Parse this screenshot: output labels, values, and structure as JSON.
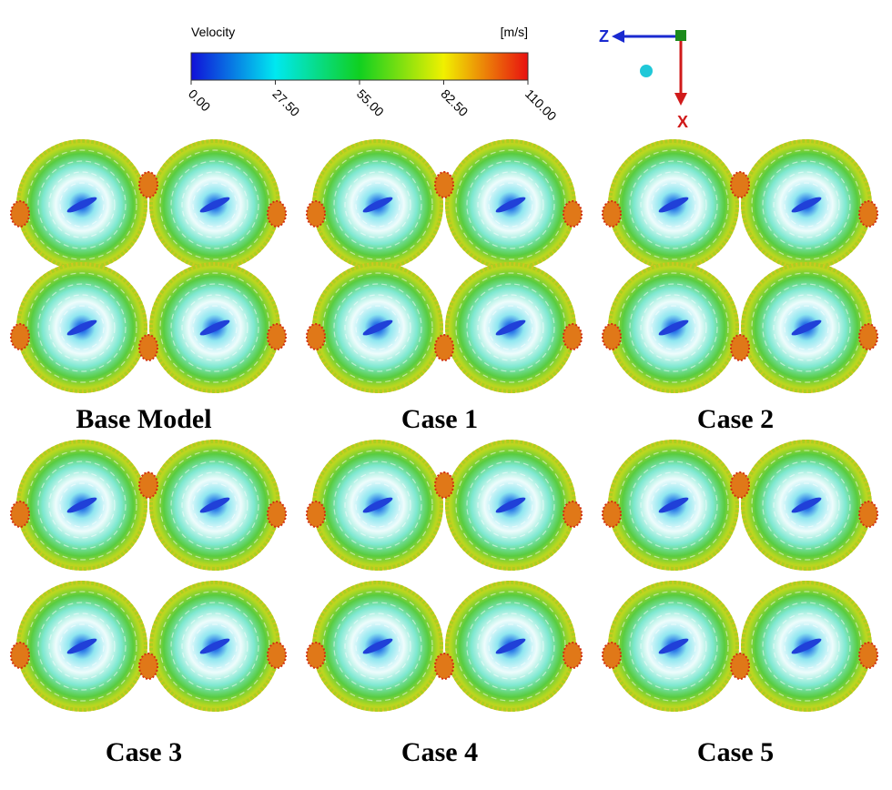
{
  "legend": {
    "title": "Velocity",
    "unit": "[m/s]",
    "range": [
      0,
      110
    ],
    "ticks": [
      {
        "value": 0,
        "label": "0.00"
      },
      {
        "value": 27.5,
        "label": "27.50"
      },
      {
        "value": 55,
        "label": "55.00"
      },
      {
        "value": 82.5,
        "label": "82.50"
      },
      {
        "value": 110,
        "label": "110.00"
      }
    ]
  },
  "triad": {
    "z": "Z",
    "x": "X"
  },
  "panels": [
    {
      "label": "Base Model"
    },
    {
      "label": "Case 1"
    },
    {
      "label": "Case 2"
    },
    {
      "label": "Case 3"
    },
    {
      "label": "Case 4"
    },
    {
      "label": "Case 5"
    }
  ]
}
